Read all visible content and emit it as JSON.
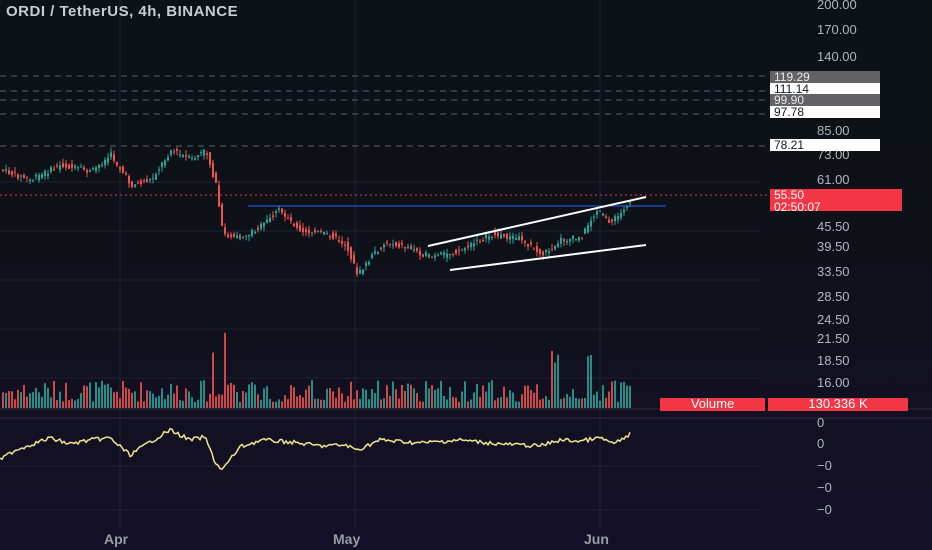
{
  "header": {
    "title": "ORDI / TetherUS, 4h, BINANCE"
  },
  "price_axis": {
    "ticks": [
      "200.00",
      "170.00",
      "140.00",
      "85.00",
      "73.00",
      "61.00",
      "45.50",
      "39.50",
      "33.50",
      "28.50",
      "24.50",
      "21.50",
      "18.50",
      "16.00"
    ]
  },
  "price_tags": {
    "t1": "119.29",
    "t2": "111.14",
    "t3": "99.90",
    "t4": "97.78",
    "t5": "78.21"
  },
  "current_price": {
    "price": "55.50",
    "countdown": "02:50:07"
  },
  "volume": {
    "label": "Volume",
    "value": "130.336 K"
  },
  "oscillator_axis": {
    "ticks": [
      "0",
      "0",
      "−0",
      "−0",
      "−0"
    ]
  },
  "time_axis": {
    "labels": [
      "Apr",
      "May",
      "Jun"
    ]
  },
  "colors": {
    "up": "#26a69a",
    "down": "#ef5350",
    "line": "#f0e68c",
    "channel": "#ffffff",
    "hline": "#2962ff",
    "tag_red": "#f23645"
  }
}
